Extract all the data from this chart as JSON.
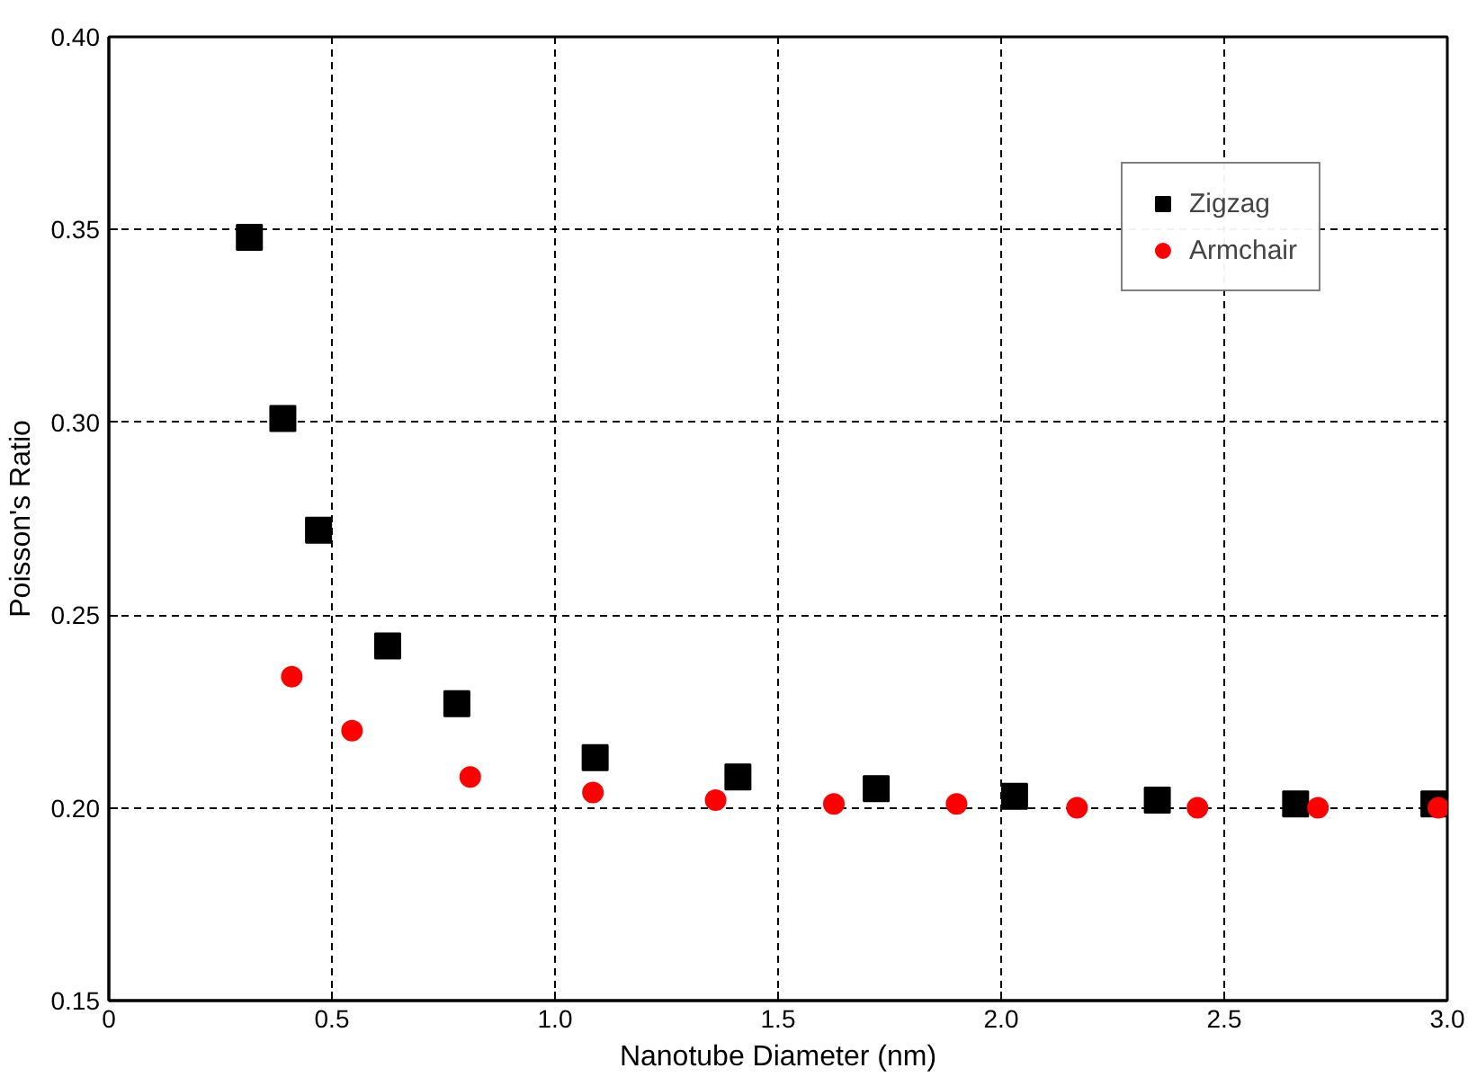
{
  "chart_data": {
    "type": "scatter",
    "xlabel": "Nanotube Diameter (nm)",
    "ylabel": "Poisson's Ratio",
    "xlim": [
      0,
      3.0
    ],
    "ylim": [
      0.15,
      0.4
    ],
    "xticks": [
      0,
      {
        "value": 0.5,
        "label": "0.5"
      },
      {
        "value": 1.0,
        "label": "1.0"
      },
      {
        "value": 1.5,
        "label": "1.5"
      },
      {
        "value": 2.0,
        "label": "2.0"
      },
      {
        "value": 2.5,
        "label": "2.5"
      },
      {
        "value": 3.0,
        "label": "3.0"
      }
    ],
    "yticks": [
      {
        "value": 0.15,
        "label": "0.15"
      },
      {
        "value": 0.2,
        "label": "0.20"
      },
      {
        "value": 0.25,
        "label": "0.25"
      },
      {
        "value": 0.3,
        "label": "0.30"
      },
      {
        "value": 0.35,
        "label": "0.35"
      },
      {
        "value": 0.4,
        "label": "0.40"
      }
    ],
    "grid": true,
    "legend": "top right",
    "series": [
      {
        "name": "Zigzag",
        "color": "#000000",
        "marker": "square",
        "x": [
          0.315,
          0.39,
          0.47,
          0.625,
          0.78,
          1.09,
          1.41,
          1.72,
          2.03,
          2.35,
          2.66,
          2.97
        ],
        "values": [
          0.348,
          0.301,
          0.272,
          0.242,
          0.227,
          0.213,
          0.208,
          0.205,
          0.203,
          0.202,
          0.201,
          0.201
        ]
      },
      {
        "name": "Armchair",
        "color": "#ff0000",
        "marker": "circle",
        "x": [
          0.41,
          0.545,
          0.81,
          1.085,
          1.36,
          1.625,
          1.9,
          2.17,
          2.44,
          2.71,
          2.98
        ],
        "values": [
          0.234,
          0.22,
          0.208,
          0.204,
          0.202,
          0.201,
          0.201,
          0.2,
          0.2,
          0.2,
          0.2
        ]
      }
    ]
  }
}
